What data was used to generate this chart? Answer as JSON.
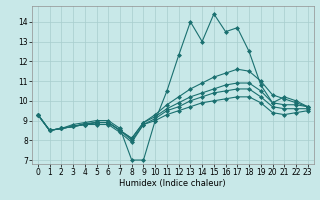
{
  "title": "",
  "xlabel": "Humidex (Indice chaleur)",
  "ylabel": "",
  "bg_color": "#c8e8e8",
  "grid_color": "#a8cece",
  "line_color": "#1a7070",
  "xlim": [
    -0.5,
    23.5
  ],
  "ylim": [
    6.8,
    14.8
  ],
  "yticks": [
    7,
    8,
    9,
    10,
    11,
    12,
    13,
    14
  ],
  "xticks": [
    0,
    1,
    2,
    3,
    4,
    5,
    6,
    7,
    8,
    9,
    10,
    11,
    12,
    13,
    14,
    15,
    16,
    17,
    18,
    19,
    20,
    21,
    22,
    23
  ],
  "lines": [
    [
      9.3,
      8.5,
      8.6,
      8.8,
      8.9,
      9.0,
      9.0,
      8.6,
      7.0,
      7.0,
      9.0,
      10.5,
      12.3,
      14.0,
      13.0,
      14.4,
      13.5,
      13.7,
      12.5,
      10.8,
      9.9,
      10.2,
      10.0,
      9.7
    ],
    [
      9.3,
      8.5,
      8.6,
      8.7,
      8.85,
      8.9,
      8.9,
      8.5,
      8.1,
      8.9,
      9.3,
      9.8,
      10.2,
      10.6,
      10.9,
      11.2,
      11.4,
      11.6,
      11.5,
      11.0,
      10.3,
      10.1,
      9.9,
      9.7
    ],
    [
      9.3,
      8.5,
      8.6,
      8.7,
      8.8,
      8.9,
      8.9,
      8.5,
      8.1,
      8.9,
      9.2,
      9.6,
      9.9,
      10.2,
      10.4,
      10.6,
      10.8,
      10.9,
      10.9,
      10.5,
      9.9,
      9.8,
      9.8,
      9.7
    ],
    [
      9.3,
      8.5,
      8.6,
      8.7,
      8.8,
      8.9,
      8.9,
      8.5,
      8.0,
      8.8,
      9.1,
      9.5,
      9.7,
      10.0,
      10.2,
      10.4,
      10.5,
      10.6,
      10.6,
      10.2,
      9.7,
      9.6,
      9.6,
      9.6
    ],
    [
      9.3,
      8.5,
      8.6,
      8.7,
      8.8,
      8.8,
      8.8,
      8.4,
      7.9,
      8.8,
      9.0,
      9.3,
      9.5,
      9.7,
      9.9,
      10.0,
      10.1,
      10.2,
      10.2,
      9.9,
      9.4,
      9.3,
      9.4,
      9.5
    ]
  ],
  "marker": "D",
  "markersize": 2,
  "linewidth": 0.8,
  "label_fontsize": 6,
  "tick_fontsize": 5.5
}
